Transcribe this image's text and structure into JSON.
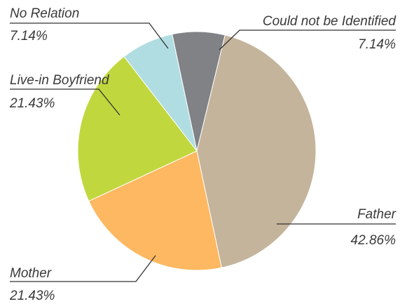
{
  "chart_data": {
    "type": "pie",
    "title": "",
    "slices": [
      {
        "label": "Could not be Identified",
        "value": 7.14,
        "value_label": "7.14%",
        "color": "#808285"
      },
      {
        "label": "Father",
        "value": 42.86,
        "value_label": "42.86%",
        "color": "#c4b49b"
      },
      {
        "label": "Mother",
        "value": 21.43,
        "value_label": "21.43%",
        "color": "#fdb861"
      },
      {
        "label": "Live-in Boyfriend",
        "value": 21.43,
        "value_label": "21.43%",
        "color": "#c1d73e"
      },
      {
        "label": "No Relation",
        "value": 7.14,
        "value_label": "7.14%",
        "color": "#b0dde2"
      }
    ],
    "start_angle_deg": -12,
    "direction": "clockwise",
    "legend": "none"
  }
}
